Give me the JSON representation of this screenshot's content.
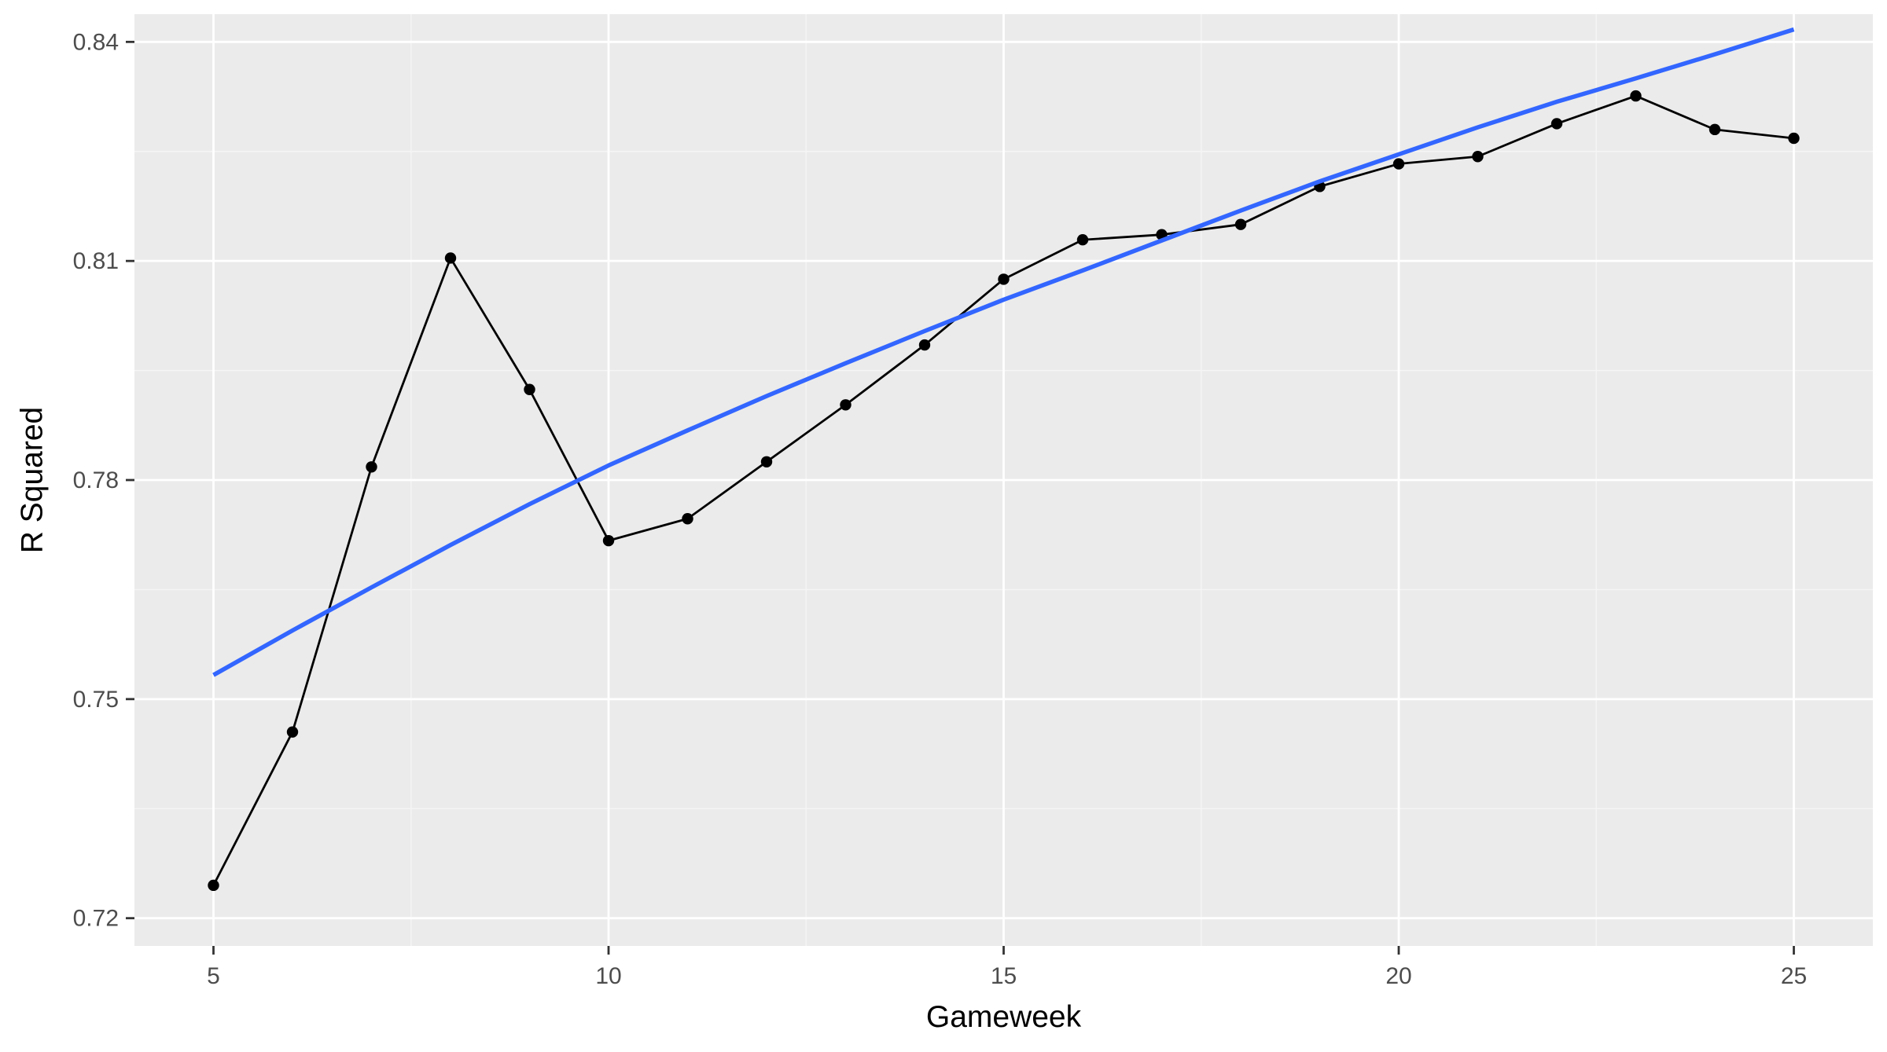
{
  "chart_data": {
    "type": "line",
    "title": "",
    "xlabel": "Gameweek",
    "ylabel": "R Squared",
    "xlim": [
      4,
      26
    ],
    "ylim": [
      0.72,
      0.84
    ],
    "x_ticks": [
      5,
      10,
      15,
      20,
      25
    ],
    "x_tick_labels": [
      "5",
      "10",
      "15",
      "20",
      "25"
    ],
    "y_ticks": [
      0.72,
      0.75,
      0.78,
      0.81,
      0.84
    ],
    "y_tick_labels": [
      "0.72",
      "0.75",
      "0.78",
      "0.81",
      "0.84"
    ],
    "grid": true,
    "legend": "none",
    "series": [
      {
        "x": [
          5,
          6,
          7,
          8,
          9,
          10,
          11,
          12,
          13,
          14,
          15,
          16,
          17,
          18,
          19,
          20,
          21,
          22,
          23,
          24,
          25
        ],
        "values": [
          0.7245,
          0.7455,
          0.7818,
          0.8104,
          0.7924,
          0.7717,
          0.7747,
          0.7825,
          0.7903,
          0.7985,
          0.8075,
          0.8129,
          0.8136,
          0.815,
          0.8202,
          0.8233,
          0.8243,
          0.8288,
          0.8326,
          0.828,
          0.8268
        ],
        "color": "#000000",
        "style": "line+points"
      },
      {
        "x": [
          5,
          6,
          7,
          8,
          9,
          10,
          11,
          12,
          13,
          14,
          15,
          16,
          17,
          18,
          19,
          20,
          21,
          22,
          23,
          24,
          25
        ],
        "values": [
          0.7533,
          0.7594,
          0.7653,
          0.7711,
          0.7767,
          0.782,
          0.7868,
          0.7915,
          0.796,
          0.8004,
          0.8047,
          0.8087,
          0.8128,
          0.8169,
          0.8209,
          0.8246,
          0.8283,
          0.8318,
          0.835,
          0.8383,
          0.8417
        ],
        "color": "#3366FF",
        "style": "smooth"
      }
    ],
    "colors": {
      "panel_background": "#EBEBEB",
      "grid_major": "#FFFFFF",
      "grid_minor": "#F5F5F5",
      "tick_mark": "#333333"
    }
  }
}
